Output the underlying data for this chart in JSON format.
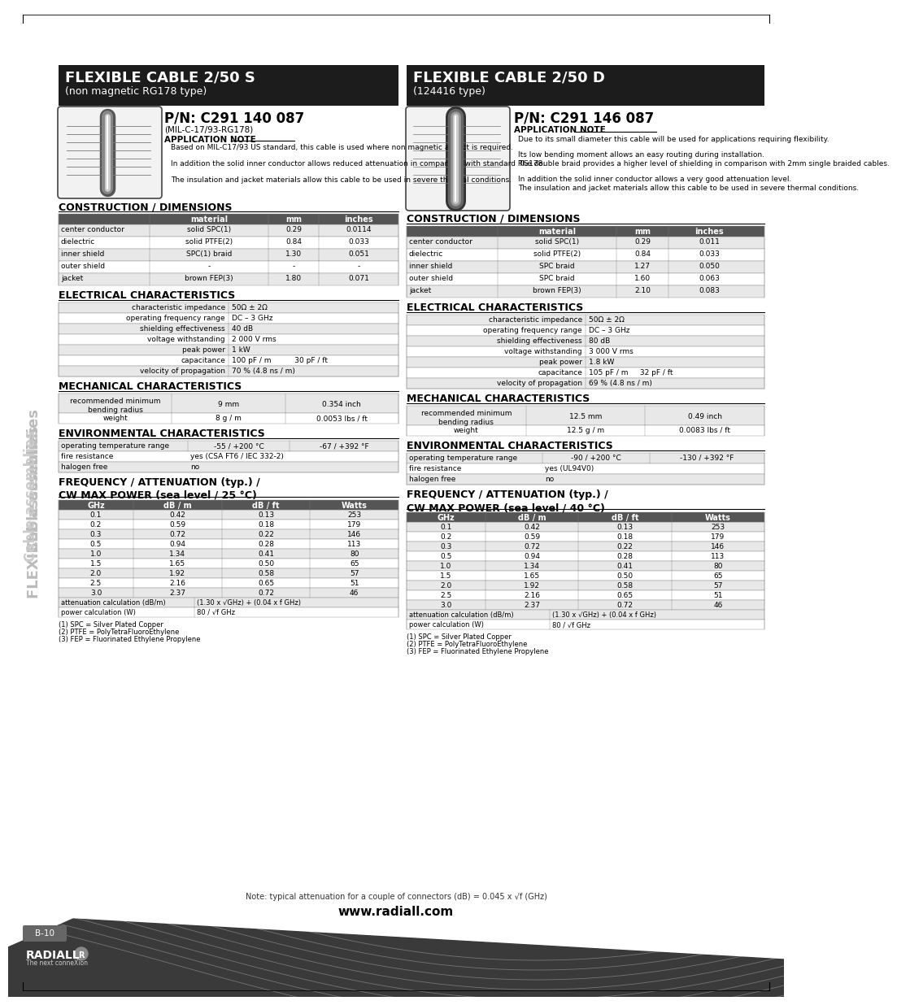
{
  "bg_color": "#ffffff",
  "left_title": "FLEXIBLE CABLE 2/50 S",
  "left_subtitle": "(non magnetic RG178 type)",
  "right_title": "FLEXIBLE CABLE 2/50 D",
  "right_subtitle": "(124416 type)",
  "left_pn": "P/N: C291 140 087",
  "left_pn_sub": "(MIL-C-17/93-RG178)",
  "left_app_note": "APPLICATION NOTE",
  "left_app_text": [
    "Based on MIL-C17/93 US standard, this cable is used where non magnetic aspect is required.",
    "In addition the solid inner conductor allows reduced attenuation in comparison with standard RG178.",
    "The insulation and jacket materials allow this cable to be used in severe thermal conditions."
  ],
  "right_pn": "P/N: C291 146 087",
  "right_app_note": "APPLICATION NOTE",
  "right_app_text": [
    "Due to its small diameter this cable will be used for applications requiring flexibility.",
    "Its low bending moment allows an easy routing during installation.",
    "The double braid provides a higher level of shielding in comparison with 2mm single braided cables.",
    "In addition the solid inner conductor allows a very good attenuation level.",
    "The insulation and jacket materials allow this cable to be used in severe thermal conditions."
  ],
  "left_constr_headers": [
    "",
    "material",
    "mm",
    "inches"
  ],
  "left_constr_rows": [
    [
      "center conductor",
      "solid SPC(1)",
      "0.29",
      "0.0114"
    ],
    [
      "dielectric",
      "solid PTFE(2)",
      "0.84",
      "0.033"
    ],
    [
      "inner shield",
      "SPC(1) braid",
      "1.30",
      "0.051"
    ],
    [
      "outer shield",
      "-",
      "-",
      "-"
    ],
    [
      "jacket",
      "brown FEP(3)",
      "1.80",
      "0.071"
    ]
  ],
  "right_constr_headers": [
    "",
    "material",
    "mm",
    "inches"
  ],
  "right_constr_rows": [
    [
      "center conductor",
      "solid SPC(1)",
      "0.29",
      "0.011"
    ],
    [
      "dielectric",
      "solid PTFE(2)",
      "0.84",
      "0.033"
    ],
    [
      "inner shield",
      "SPC braid",
      "1.27",
      "0.050"
    ],
    [
      "outer shield",
      "SPC braid",
      "1.60",
      "0.063"
    ],
    [
      "jacket",
      "brown FEP(3)",
      "2.10",
      "0.083"
    ]
  ],
  "left_elec_rows": [
    [
      "characteristic impedance",
      "50Ω ± 2Ω"
    ],
    [
      "operating frequency range",
      "DC – 3 GHz"
    ],
    [
      "shielding effectiveness",
      "40 dB"
    ],
    [
      "voltage withstanding",
      "2 000 V rms"
    ],
    [
      "peak power",
      "1 kW"
    ],
    [
      "capacitance",
      "100 pF / m          30 pF / ft"
    ],
    [
      "velocity of propagation",
      "70 % (4.8 ns / m)"
    ]
  ],
  "right_elec_rows": [
    [
      "characteristic impedance",
      "50Ω ± 2Ω"
    ],
    [
      "operating frequency range",
      "DC – 3 GHz"
    ],
    [
      "shielding effectiveness",
      "80 dB"
    ],
    [
      "voltage withstanding",
      "3 000 V rms"
    ],
    [
      "peak power",
      "1.8 kW"
    ],
    [
      "capacitance",
      "105 pF / m     32 pF / ft"
    ],
    [
      "velocity of propagation",
      "69 % (4.8 ns / m)"
    ]
  ],
  "left_mech_bend": [
    "recommended minimum\nbending radius",
    "9 mm",
    "0.354 inch"
  ],
  "left_mech_weight": [
    "weight",
    "8 g / m",
    "0.0053 lbs / ft"
  ],
  "right_mech_bend": [
    "recommended minimum\nbending radius",
    "12.5 mm",
    "0.49 inch"
  ],
  "right_mech_weight": [
    "weight",
    "12.5 g / m",
    "0.0083 lbs / ft"
  ],
  "left_env_rows": [
    [
      "operating temperature range",
      "-55 / +200 °C",
      "-67 / +392 °F"
    ],
    [
      "fire resistance",
      "yes (CSA FT6 / IEC 332-2)",
      ""
    ],
    [
      "halogen free",
      "no",
      ""
    ]
  ],
  "right_env_rows": [
    [
      "operating temperature range",
      "-90 / +200 °C",
      "-130 / +392 °F"
    ],
    [
      "fire resistance",
      "yes (UL94V0)",
      ""
    ],
    [
      "halogen free",
      "no",
      ""
    ]
  ],
  "left_freq_title": "FREQUENCY / ATTENUATION (typ.) /\nCW MAX POWER (sea level / 25 °C)",
  "right_freq_title": "FREQUENCY / ATTENUATION (typ.) /\nCW MAX POWER (sea level / 40 °C)",
  "freq_headers": [
    "GHz",
    "dB / m",
    "dB / ft",
    "Watts"
  ],
  "freq_rows": [
    [
      "0.1",
      "0.42",
      "0.13",
      "253"
    ],
    [
      "0.2",
      "0.59",
      "0.18",
      "179"
    ],
    [
      "0.3",
      "0.72",
      "0.22",
      "146"
    ],
    [
      "0.5",
      "0.94",
      "0.28",
      "113"
    ],
    [
      "1.0",
      "1.34",
      "0.41",
      "80"
    ],
    [
      "1.5",
      "1.65",
      "0.50",
      "65"
    ],
    [
      "2.0",
      "1.92",
      "0.58",
      "57"
    ],
    [
      "2.5",
      "2.16",
      "0.65",
      "51"
    ],
    [
      "3.0",
      "2.37",
      "0.72",
      "46"
    ]
  ],
  "freq_calc_row": [
    "attenuation calculation (dB/m)",
    "(1.30 x √GHz) + (0.04 x f GHz)"
  ],
  "freq_power_row": [
    "power calculation (W)",
    "80 / √f GHz"
  ],
  "footnotes": [
    "(1) SPC = Silver Plated Copper",
    "(2) PTFE = PolyTetraFluoroEthylene",
    "(3) FEP = Fluorinated Ethylene Propylene"
  ],
  "bottom_note": "Note: typical attenuation for a couple of connectors (dB) = 0.045 x √f (GHz)",
  "website": "www.radiall.com",
  "page_num": "B-10"
}
